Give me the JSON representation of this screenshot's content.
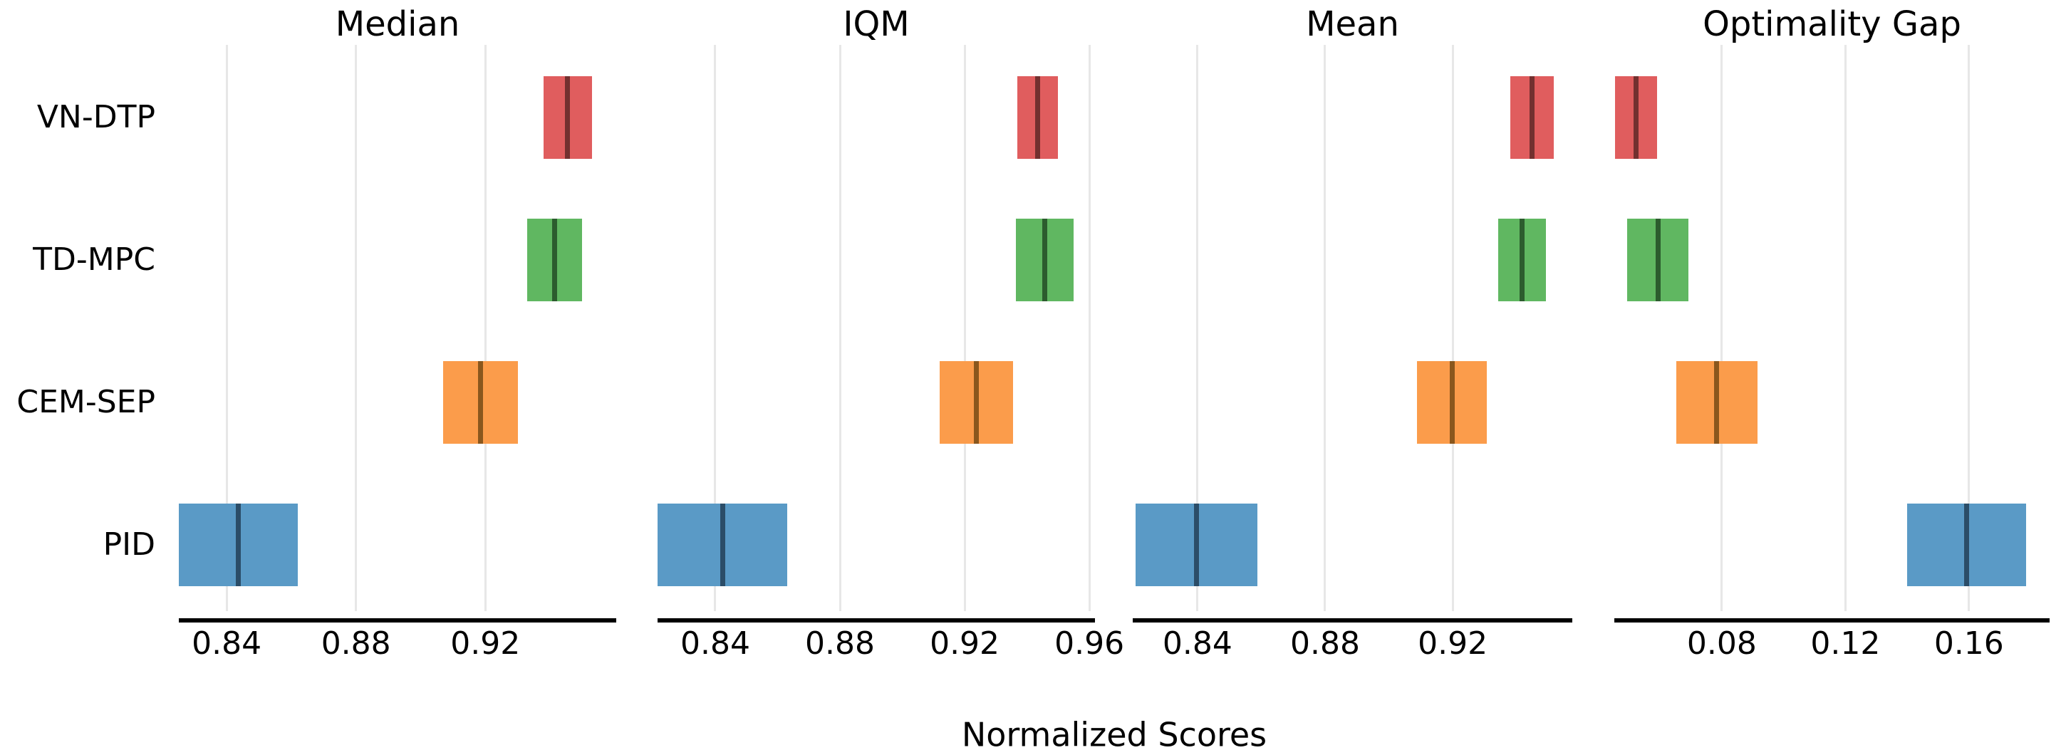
{
  "chart_data": {
    "type": "bar",
    "variant": "horizontal-interval-estimates",
    "title": "",
    "xlabel": "Normalized Scores",
    "grid": "vertical-only",
    "legend": "none",
    "background": "#ffffff",
    "grid_color": "#e7e7e7",
    "axis_color": "#000000",
    "text_color": "#000000",
    "methods": [
      "VN-DTP",
      "TD-MPC",
      "CEM-SEP",
      "PID"
    ],
    "colors": {
      "VN-DTP": {
        "fill": "#e05d5e",
        "line": "#73302f"
      },
      "TD-MPC": {
        "fill": "#60b761",
        "line": "#2c5c2e"
      },
      "CEM-SEP": {
        "fill": "#fb9c4b",
        "line": "#8a571d"
      },
      "PID": {
        "fill": "#5a9ac6",
        "line": "#2b4d68"
      }
    },
    "panels": [
      {
        "title": "Median",
        "xlim": [
          0.8252,
          0.9605
        ],
        "ticks": [
          0.84,
          0.88,
          0.92
        ],
        "series": [
          {
            "method": "VN-DTP",
            "lower": 0.938,
            "upper": 0.953,
            "point": 0.9455
          },
          {
            "method": "TD-MPC",
            "lower": 0.933,
            "upper": 0.95,
            "point": 0.9415
          },
          {
            "method": "CEM-SEP",
            "lower": 0.907,
            "upper": 0.93,
            "point": 0.9185
          },
          {
            "method": "PID",
            "lower": 0.825,
            "upper": 0.862,
            "point": 0.8435
          }
        ]
      },
      {
        "title": "IQM",
        "xlim": [
          0.8215,
          0.9618
        ],
        "ticks": [
          0.84,
          0.88,
          0.92,
          0.96
        ],
        "series": [
          {
            "method": "VN-DTP",
            "lower": 0.937,
            "upper": 0.95,
            "point": 0.9435
          },
          {
            "method": "TD-MPC",
            "lower": 0.9365,
            "upper": 0.955,
            "point": 0.9458
          },
          {
            "method": "CEM-SEP",
            "lower": 0.912,
            "upper": 0.9355,
            "point": 0.9238
          },
          {
            "method": "PID",
            "lower": 0.8215,
            "upper": 0.863,
            "point": 0.8423
          }
        ]
      },
      {
        "title": "Mean",
        "xlim": [
          0.8197,
          0.9575
        ],
        "ticks": [
          0.84,
          0.88,
          0.92
        ],
        "series": [
          {
            "method": "VN-DTP",
            "lower": 0.938,
            "upper": 0.9517,
            "point": 0.9448
          },
          {
            "method": "TD-MPC",
            "lower": 0.9343,
            "upper": 0.9493,
            "point": 0.9418
          },
          {
            "method": "CEM-SEP",
            "lower": 0.9088,
            "upper": 0.9307,
            "point": 0.9198
          },
          {
            "method": "PID",
            "lower": 0.8206,
            "upper": 0.8588,
            "point": 0.8397
          }
        ]
      },
      {
        "title": "Optimality Gap",
        "xlim": [
          0.0452,
          0.1861
        ],
        "ticks": [
          0.08,
          0.12,
          0.16
        ],
        "series": [
          {
            "method": "VN-DTP",
            "lower": 0.0455,
            "upper": 0.059,
            "point": 0.0523
          },
          {
            "method": "TD-MPC",
            "lower": 0.0493,
            "upper": 0.0692,
            "point": 0.0593
          },
          {
            "method": "CEM-SEP",
            "lower": 0.0653,
            "upper": 0.0915,
            "point": 0.0784
          },
          {
            "method": "PID",
            "lower": 0.1399,
            "upper": 0.1784,
            "point": 0.1592
          }
        ]
      }
    ]
  }
}
